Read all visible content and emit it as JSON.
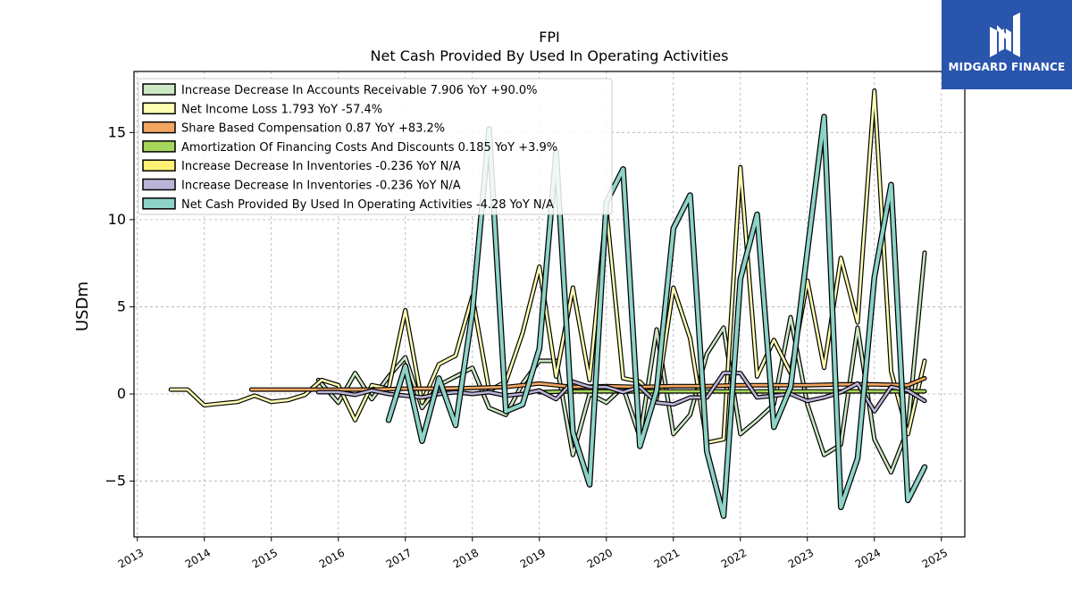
{
  "brand": {
    "name": "MIDGARD FINANCE",
    "bg_color": "#2a55ad"
  },
  "chart_data": {
    "type": "line",
    "title": "FPI",
    "subtitle": "Net Cash Provided By Used In Operating Activities",
    "ylabel": "USDm",
    "xlabel": "",
    "xlim": [
      2012.95,
      2025.35
    ],
    "ylim": [
      -8.2,
      18.5
    ],
    "x_ticks": [
      "2013",
      "2014",
      "2015",
      "2016",
      "2017",
      "2018",
      "2019",
      "2020",
      "2021",
      "2022",
      "2023",
      "2024",
      "2025"
    ],
    "y_ticks": [
      -5,
      0,
      5,
      10,
      15
    ],
    "y_tick_labels": [
      "−5",
      "0",
      "5",
      "10",
      "15"
    ],
    "grid": true,
    "legend_position": "top-left",
    "series": [
      {
        "name": "Increase Decrease In Accounts Receivable",
        "legend": "Increase Decrease In Accounts Receivable  7.906 YoY +90.0%",
        "color": "#cde8c4",
        "points": [
          [
            2015.7,
            0.8
          ],
          [
            2016.0,
            -0.5
          ],
          [
            2016.25,
            1.2
          ],
          [
            2016.5,
            -0.3
          ],
          [
            2016.75,
            1.0
          ],
          [
            2017.0,
            2.1
          ],
          [
            2017.25,
            -0.8
          ],
          [
            2017.5,
            0.5
          ],
          [
            2017.75,
            1.0
          ],
          [
            2018.0,
            1.5
          ],
          [
            2018.25,
            -0.8
          ],
          [
            2018.5,
            -1.2
          ],
          [
            2018.75,
            0.6
          ],
          [
            2019.0,
            1.9
          ],
          [
            2019.25,
            1.9
          ],
          [
            2019.5,
            -3.5
          ],
          [
            2019.75,
            0.0
          ],
          [
            2020.0,
            -0.5
          ],
          [
            2020.25,
            0.4
          ],
          [
            2020.5,
            -2.5
          ],
          [
            2020.75,
            3.7
          ],
          [
            2021.0,
            -2.3
          ],
          [
            2021.25,
            -1.2
          ],
          [
            2021.5,
            2.3
          ],
          [
            2021.75,
            3.8
          ],
          [
            2022.0,
            -2.3
          ],
          [
            2022.25,
            -1.5
          ],
          [
            2022.5,
            -0.6
          ],
          [
            2022.75,
            4.4
          ],
          [
            2023.0,
            -0.6
          ],
          [
            2023.25,
            -3.5
          ],
          [
            2023.5,
            -2.9
          ],
          [
            2023.75,
            3.8
          ],
          [
            2024.0,
            -2.6
          ],
          [
            2024.25,
            -4.5
          ],
          [
            2024.5,
            -2.0
          ],
          [
            2024.75,
            8.1
          ]
        ]
      },
      {
        "name": "Net Income Loss",
        "legend": "Net Income Loss  1.793 YoY -57.4%",
        "color": "#ffffb3",
        "points": [
          [
            2013.5,
            0.25
          ],
          [
            2013.75,
            0.25
          ],
          [
            2014.0,
            -0.65
          ],
          [
            2014.25,
            -0.55
          ],
          [
            2014.5,
            -0.45
          ],
          [
            2014.75,
            -0.1
          ],
          [
            2015.0,
            -0.45
          ],
          [
            2015.25,
            -0.35
          ],
          [
            2015.5,
            -0.05
          ],
          [
            2015.75,
            0.8
          ],
          [
            2016.0,
            0.5
          ],
          [
            2016.25,
            -1.5
          ],
          [
            2016.5,
            0.5
          ],
          [
            2016.75,
            0.3
          ],
          [
            2017.0,
            4.8
          ],
          [
            2017.25,
            -0.5
          ],
          [
            2017.5,
            1.7
          ],
          [
            2017.75,
            2.2
          ],
          [
            2018.0,
            5.6
          ],
          [
            2018.25,
            0.2
          ],
          [
            2018.5,
            0.7
          ],
          [
            2018.75,
            3.5
          ],
          [
            2019.0,
            7.3
          ],
          [
            2019.25,
            1.0
          ],
          [
            2019.5,
            6.1
          ],
          [
            2019.75,
            0.8
          ],
          [
            2020.0,
            10.6
          ],
          [
            2020.25,
            0.9
          ],
          [
            2020.5,
            0.7
          ],
          [
            2020.75,
            -0.3
          ],
          [
            2021.0,
            6.1
          ],
          [
            2021.25,
            3.2
          ],
          [
            2021.5,
            -2.8
          ],
          [
            2021.75,
            -2.6
          ],
          [
            2022.0,
            13.0
          ],
          [
            2022.25,
            1.0
          ],
          [
            2022.5,
            3.1
          ],
          [
            2022.75,
            1.2
          ],
          [
            2023.0,
            6.5
          ],
          [
            2023.25,
            1.5
          ],
          [
            2023.5,
            7.8
          ],
          [
            2023.75,
            4.1
          ],
          [
            2024.0,
            17.4
          ],
          [
            2024.25,
            1.3
          ],
          [
            2024.5,
            -2.3
          ],
          [
            2024.75,
            1.9
          ]
        ]
      },
      {
        "name": "Share Based Compensation",
        "legend": "Share Based Compensation  0.87 YoY +83.2%",
        "color": "#f4a661",
        "points": [
          [
            2014.7,
            0.25
          ],
          [
            2015.0,
            0.25
          ],
          [
            2015.5,
            0.25
          ],
          [
            2016.0,
            0.25
          ],
          [
            2016.5,
            0.25
          ],
          [
            2017.0,
            0.3
          ],
          [
            2017.5,
            0.3
          ],
          [
            2018.0,
            0.35
          ],
          [
            2018.5,
            0.4
          ],
          [
            2019.0,
            0.6
          ],
          [
            2019.5,
            0.4
          ],
          [
            2020.0,
            0.45
          ],
          [
            2020.5,
            0.4
          ],
          [
            2021.0,
            0.45
          ],
          [
            2021.5,
            0.45
          ],
          [
            2022.0,
            0.5
          ],
          [
            2022.5,
            0.5
          ],
          [
            2023.0,
            0.5
          ],
          [
            2023.5,
            0.55
          ],
          [
            2024.0,
            0.55
          ],
          [
            2024.5,
            0.5
          ],
          [
            2024.75,
            0.9
          ]
        ]
      },
      {
        "name": "Amortization Of Financing Costs And Discounts",
        "legend": "Amortization Of Financing Costs And Discounts  0.185 YoY +3.9%",
        "color": "#a6d65c",
        "points": [
          [
            2019.0,
            0.1
          ],
          [
            2019.5,
            0.15
          ],
          [
            2020.0,
            0.15
          ],
          [
            2020.5,
            0.15
          ],
          [
            2021.0,
            0.15
          ],
          [
            2021.5,
            0.15
          ],
          [
            2022.0,
            0.15
          ],
          [
            2022.5,
            0.15
          ],
          [
            2023.0,
            0.15
          ],
          [
            2023.5,
            0.15
          ],
          [
            2024.0,
            0.15
          ],
          [
            2024.5,
            0.15
          ],
          [
            2024.75,
            0.15
          ]
        ]
      },
      {
        "name": "Increase Decrease In Inventories",
        "legend": "Increase Decrease In Inventories  -0.236 YoY N/A",
        "color": "#fff176",
        "points": []
      },
      {
        "name": "Increase Decrease In Inventories",
        "legend": "Increase Decrease In Inventories  -0.236 YoY N/A",
        "color": "#bcb4d8",
        "points": [
          [
            2015.7,
            0.1
          ],
          [
            2016.0,
            0.1
          ],
          [
            2016.25,
            -0.05
          ],
          [
            2016.5,
            0.2
          ],
          [
            2016.75,
            0.0
          ],
          [
            2017.0,
            -0.1
          ],
          [
            2017.25,
            -0.2
          ],
          [
            2017.5,
            0.0
          ],
          [
            2017.75,
            0.1
          ],
          [
            2018.0,
            0.0
          ],
          [
            2018.25,
            0.1
          ],
          [
            2018.5,
            -0.1
          ],
          [
            2018.75,
            0.0
          ],
          [
            2019.0,
            0.2
          ],
          [
            2019.25,
            -0.3
          ],
          [
            2019.5,
            0.7
          ],
          [
            2019.75,
            0.4
          ],
          [
            2020.0,
            0.4
          ],
          [
            2020.25,
            0.1
          ],
          [
            2020.5,
            0.4
          ],
          [
            2020.75,
            -0.5
          ],
          [
            2021.0,
            -0.6
          ],
          [
            2021.25,
            -0.2
          ],
          [
            2021.5,
            -0.2
          ],
          [
            2021.75,
            1.2
          ],
          [
            2022.0,
            1.2
          ],
          [
            2022.25,
            -0.2
          ],
          [
            2022.5,
            -0.1
          ],
          [
            2022.75,
            0.0
          ],
          [
            2023.0,
            -0.4
          ],
          [
            2023.25,
            -0.2
          ],
          [
            2023.5,
            0.1
          ],
          [
            2023.75,
            0.6
          ],
          [
            2024.0,
            -1.0
          ],
          [
            2024.25,
            0.4
          ],
          [
            2024.5,
            0.2
          ],
          [
            2024.75,
            -0.4
          ]
        ]
      },
      {
        "name": "Net Cash Provided By Used In Operating Activities",
        "legend": "Net Cash Provided By Used In Operating Activities  -4.28 YoY N/A",
        "color": "#8dd3c7",
        "points": [
          [
            2016.75,
            -1.5
          ],
          [
            2017.0,
            1.6
          ],
          [
            2017.25,
            -2.7
          ],
          [
            2017.5,
            0.9
          ],
          [
            2017.75,
            -1.8
          ],
          [
            2018.0,
            4.7
          ],
          [
            2018.25,
            15.2
          ],
          [
            2018.5,
            -1.0
          ],
          [
            2018.75,
            -0.6
          ],
          [
            2019.0,
            2.6
          ],
          [
            2019.25,
            13.9
          ],
          [
            2019.5,
            -2.2
          ],
          [
            2019.75,
            -5.2
          ],
          [
            2020.0,
            11.0
          ],
          [
            2020.25,
            12.9
          ],
          [
            2020.5,
            -3.0
          ],
          [
            2020.75,
            0.2
          ],
          [
            2021.0,
            9.5
          ],
          [
            2021.25,
            11.4
          ],
          [
            2021.5,
            -3.3
          ],
          [
            2021.75,
            -7.0
          ],
          [
            2022.0,
            6.6
          ],
          [
            2022.25,
            10.3
          ],
          [
            2022.5,
            -1.9
          ],
          [
            2022.75,
            0.4
          ],
          [
            2023.0,
            8.2
          ],
          [
            2023.25,
            15.9
          ],
          [
            2023.5,
            -6.5
          ],
          [
            2023.75,
            -3.7
          ],
          [
            2024.0,
            6.7
          ],
          [
            2024.25,
            12.0
          ],
          [
            2024.5,
            -6.1
          ],
          [
            2024.75,
            -4.2
          ]
        ]
      }
    ]
  }
}
